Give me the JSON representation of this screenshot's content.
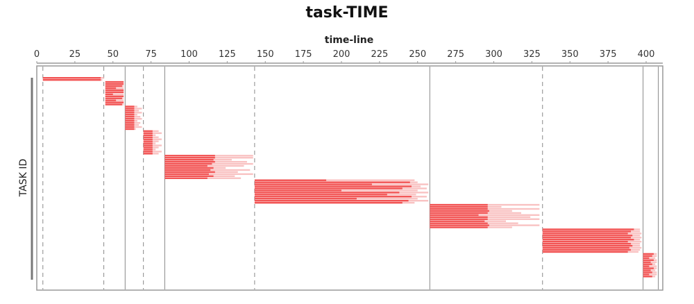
{
  "chart_data": {
    "type": "gantt",
    "title": "task-TIME",
    "xlabel": "time-line",
    "ylabel": "TASK ID",
    "x_axis_position": "top",
    "xlim": [
      0,
      410
    ],
    "x_ticks": [
      0,
      25,
      50,
      75,
      100,
      125,
      150,
      175,
      200,
      225,
      250,
      275,
      300,
      325,
      350,
      375,
      400
    ],
    "grid": false,
    "colors": {
      "task_main": "#f25353",
      "task_tail": "#f9c2c2",
      "separator": "#888888",
      "frame": "#999999"
    },
    "separators": [
      {
        "x": 4,
        "style": "dashed"
      },
      {
        "x": 44,
        "style": "dashed"
      },
      {
        "x": 58,
        "style": "solid"
      },
      {
        "x": 70,
        "style": "dashed"
      },
      {
        "x": 84,
        "style": "solid"
      },
      {
        "x": 143,
        "style": "dashed"
      },
      {
        "x": 258,
        "style": "solid"
      },
      {
        "x": 332,
        "style": "dashed"
      },
      {
        "x": 398,
        "style": "solid"
      },
      {
        "x": 408,
        "style": "solid"
      }
    ],
    "task_groups": [
      {
        "start": 4,
        "main_end": [
          42,
          42
        ],
        "tail_end": [
          44,
          43
        ]
      },
      {
        "start": 45,
        "main_end": [
          57,
          57,
          56,
          52,
          57,
          57,
          50,
          57,
          56,
          52,
          57,
          56
        ],
        "tail_end": [
          57,
          57,
          57,
          57,
          57,
          57,
          57,
          57,
          57,
          57,
          57,
          57
        ]
      },
      {
        "start": 58,
        "main_end": [
          64,
          64,
          64,
          64,
          64,
          64,
          64,
          64,
          64,
          64,
          64,
          64
        ],
        "tail_end": [
          66,
          69,
          67,
          69,
          66,
          68,
          69,
          66,
          68,
          67,
          69,
          65
        ]
      },
      {
        "start": 70,
        "main_end": [
          76,
          76,
          76,
          76,
          76,
          76,
          76,
          76,
          76,
          76,
          76,
          76
        ],
        "tail_end": [
          80,
          82,
          78,
          80,
          82,
          80,
          78,
          82,
          80,
          78,
          82,
          80
        ]
      },
      {
        "start": 84,
        "main_end": [
          117,
          117,
          116,
          117,
          115,
          112,
          116,
          114,
          117,
          113,
          116,
          112
        ],
        "tail_end": [
          142,
          142,
          128,
          138,
          142,
          136,
          124,
          140,
          132,
          142,
          130,
          134
        ]
      },
      {
        "start": 143,
        "main_end": [
          190,
          245,
          220,
          246,
          240,
          200,
          238,
          230,
          246,
          210,
          244,
          240
        ],
        "tail_end": [
          248,
          250,
          257,
          252,
          256,
          250,
          257,
          249,
          256,
          250,
          257,
          248
        ]
      },
      {
        "start": 258,
        "main_end": [
          296,
          296,
          296,
          297,
          296,
          290,
          296,
          296,
          294,
          296,
          297,
          296
        ],
        "tail_end": [
          330,
          305,
          330,
          312,
          318,
          330,
          324,
          330,
          308,
          316,
          330,
          312
        ]
      },
      {
        "start": 332,
        "main_end": [
          392,
          390,
          388,
          391,
          390,
          392,
          388,
          390,
          391,
          389,
          390,
          388
        ],
        "tail_end": [
          396,
          396,
          397,
          396,
          397,
          396,
          397,
          396,
          396,
          397,
          396,
          395
        ]
      },
      {
        "start": 398,
        "main_end": [
          405,
          404,
          402,
          405,
          403,
          404,
          402,
          405,
          403,
          404,
          402,
          404
        ],
        "tail_end": [
          407,
          407,
          406,
          407,
          407,
          406,
          407,
          407,
          406,
          407,
          407,
          406
        ]
      }
    ]
  }
}
